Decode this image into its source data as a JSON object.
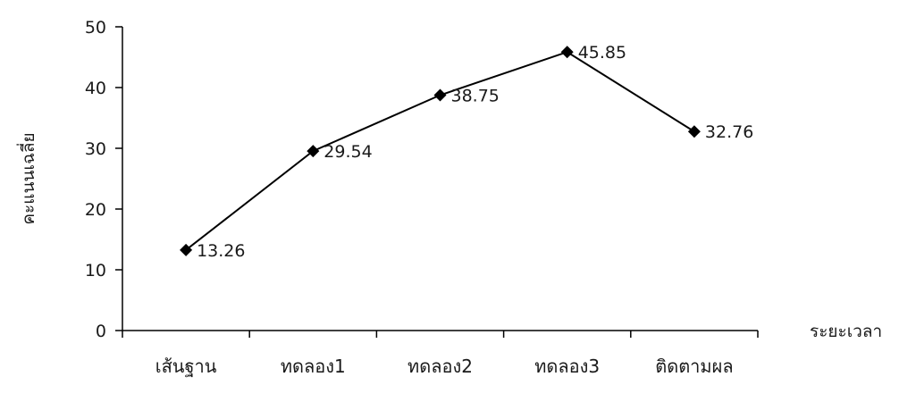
{
  "chart_data": {
    "type": "line",
    "categories": [
      "เส้นฐาน",
      "ทดลอง1",
      "ทดลอง2",
      "ทดลอง3",
      "ติดตามผล"
    ],
    "series": [
      {
        "values": [
          13.26,
          29.54,
          38.75,
          45.85,
          32.76
        ]
      }
    ],
    "data_labels": [
      "13.26",
      "29.54",
      "38.75",
      "45.85",
      "32.76"
    ],
    "xlabel": "ระยะเวลา",
    "ylabel": "คะแนนเฉลี่ย",
    "ylim": [
      0,
      50
    ],
    "yticks": [
      0,
      10,
      20,
      30,
      40,
      50
    ],
    "grid": false,
    "marker": "diamond",
    "line_color": "#000000"
  }
}
